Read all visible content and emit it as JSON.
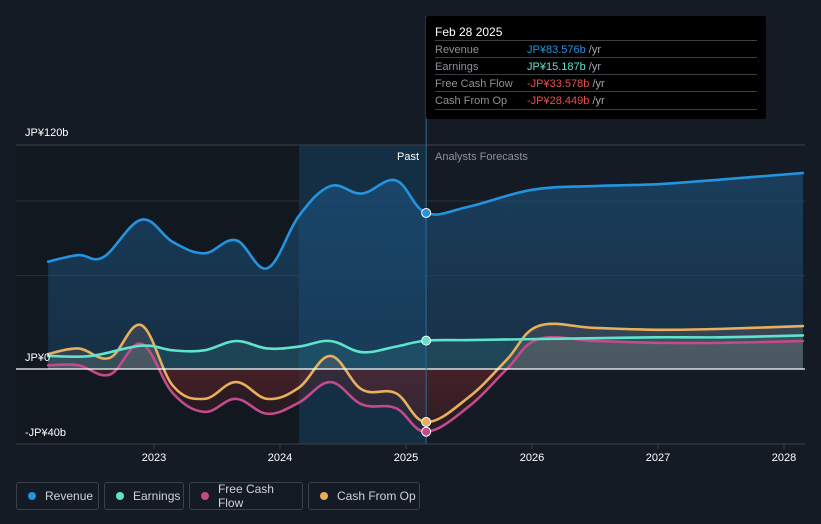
{
  "tooltip": {
    "date": "Feb 28 2025",
    "rows": [
      {
        "label": "Revenue",
        "value": "JP¥83.576b",
        "unit": "/yr",
        "color": "#2394df"
      },
      {
        "label": "Earnings",
        "value": "JP¥15.187b",
        "unit": "/yr",
        "color": "#5fe3cb"
      },
      {
        "label": "Free Cash Flow",
        "value": "-JP¥33.578b",
        "unit": "/yr",
        "color": "#e84f4f"
      },
      {
        "label": "Cash From Op",
        "value": "-JP¥28.449b",
        "unit": "/yr",
        "color": "#e84f4f"
      }
    ]
  },
  "labels": {
    "past": "Past",
    "forecast": "Analysts Forecasts"
  },
  "legend": [
    {
      "name": "Revenue",
      "color": "#2394df"
    },
    {
      "name": "Earnings",
      "color": "#5fe3cb"
    },
    {
      "name": "Free Cash Flow",
      "color": "#c34a8b"
    },
    {
      "name": "Cash From Op",
      "color": "#e8af5c"
    }
  ],
  "chart_data": {
    "type": "line",
    "title": "",
    "xlabel": "",
    "ylabel": "",
    "ylim": [
      -40,
      120
    ],
    "xlim": [
      2022.0,
      2028.15
    ],
    "y_ticks": [
      {
        "value": 120,
        "label": "JP¥120b"
      },
      {
        "value": 0,
        "label": "JP¥0"
      },
      {
        "value": -40,
        "label": "-JP¥40b"
      }
    ],
    "x_ticks": [
      2023,
      2024,
      2025,
      2026,
      2027,
      2028
    ],
    "x_tick_labels": [
      "2023",
      "2024",
      "2025",
      "2026",
      "2027",
      "2028"
    ],
    "past_forecast_split": 2025.16,
    "highlight_range": [
      2024.15,
      2025.16
    ],
    "grid": true,
    "legend_position": "bottom-left",
    "series": [
      {
        "name": "Revenue",
        "color": "#2394df",
        "unit": "JP¥b",
        "points": [
          [
            2022.16,
            57.5
          ],
          [
            2022.4,
            61
          ],
          [
            2022.6,
            60
          ],
          [
            2022.9,
            80
          ],
          [
            2023.15,
            68
          ],
          [
            2023.4,
            62
          ],
          [
            2023.65,
            69
          ],
          [
            2023.9,
            54
          ],
          [
            2024.15,
            82
          ],
          [
            2024.4,
            98
          ],
          [
            2024.65,
            94
          ],
          [
            2024.92,
            101
          ],
          [
            2025.16,
            83.6
          ],
          [
            2025.5,
            87
          ],
          [
            2026.0,
            96
          ],
          [
            2026.5,
            98
          ],
          [
            2027.0,
            99
          ],
          [
            2027.5,
            101.5
          ],
          [
            2028.15,
            105
          ]
        ]
      },
      {
        "name": "Earnings",
        "color": "#5fe3cb",
        "unit": "JP¥b",
        "points": [
          [
            2022.16,
            7
          ],
          [
            2022.5,
            7
          ],
          [
            2022.9,
            12.5
          ],
          [
            2023.15,
            10
          ],
          [
            2023.4,
            10
          ],
          [
            2023.65,
            15
          ],
          [
            2023.9,
            11
          ],
          [
            2024.15,
            12
          ],
          [
            2024.4,
            15
          ],
          [
            2024.65,
            9
          ],
          [
            2024.92,
            12
          ],
          [
            2025.16,
            15.2
          ],
          [
            2025.5,
            15.5
          ],
          [
            2026.0,
            16
          ],
          [
            2026.5,
            16.5
          ],
          [
            2027.0,
            17
          ],
          [
            2027.5,
            17
          ],
          [
            2028.15,
            18
          ]
        ]
      },
      {
        "name": "Free Cash Flow",
        "color": "#c34a8b",
        "unit": "JP¥b",
        "points": [
          [
            2022.16,
            2
          ],
          [
            2022.4,
            2
          ],
          [
            2022.65,
            -3
          ],
          [
            2022.9,
            13.5
          ],
          [
            2023.15,
            -13
          ],
          [
            2023.4,
            -23
          ],
          [
            2023.65,
            -16
          ],
          [
            2023.9,
            -24
          ],
          [
            2024.15,
            -18
          ],
          [
            2024.4,
            -7
          ],
          [
            2024.65,
            -19
          ],
          [
            2024.92,
            -21
          ],
          [
            2025.16,
            -33.6
          ],
          [
            2025.5,
            -20
          ],
          [
            2025.8,
            0
          ],
          [
            2026.05,
            16
          ],
          [
            2026.5,
            15
          ],
          [
            2027.0,
            14
          ],
          [
            2027.5,
            14
          ],
          [
            2028.15,
            15
          ]
        ]
      },
      {
        "name": "Cash From Op",
        "color": "#e8af5c",
        "unit": "JP¥b",
        "points": [
          [
            2022.16,
            8
          ],
          [
            2022.4,
            11
          ],
          [
            2022.65,
            6
          ],
          [
            2022.9,
            23.5
          ],
          [
            2023.15,
            -9
          ],
          [
            2023.4,
            -16
          ],
          [
            2023.65,
            -7
          ],
          [
            2023.9,
            -16
          ],
          [
            2024.15,
            -10
          ],
          [
            2024.4,
            7
          ],
          [
            2024.65,
            -11
          ],
          [
            2024.92,
            -13
          ],
          [
            2025.16,
            -28.4
          ],
          [
            2025.5,
            -15
          ],
          [
            2025.8,
            5
          ],
          [
            2026.05,
            23
          ],
          [
            2026.5,
            22
          ],
          [
            2027.0,
            21
          ],
          [
            2027.5,
            21.5
          ],
          [
            2028.15,
            23
          ]
        ]
      }
    ]
  }
}
